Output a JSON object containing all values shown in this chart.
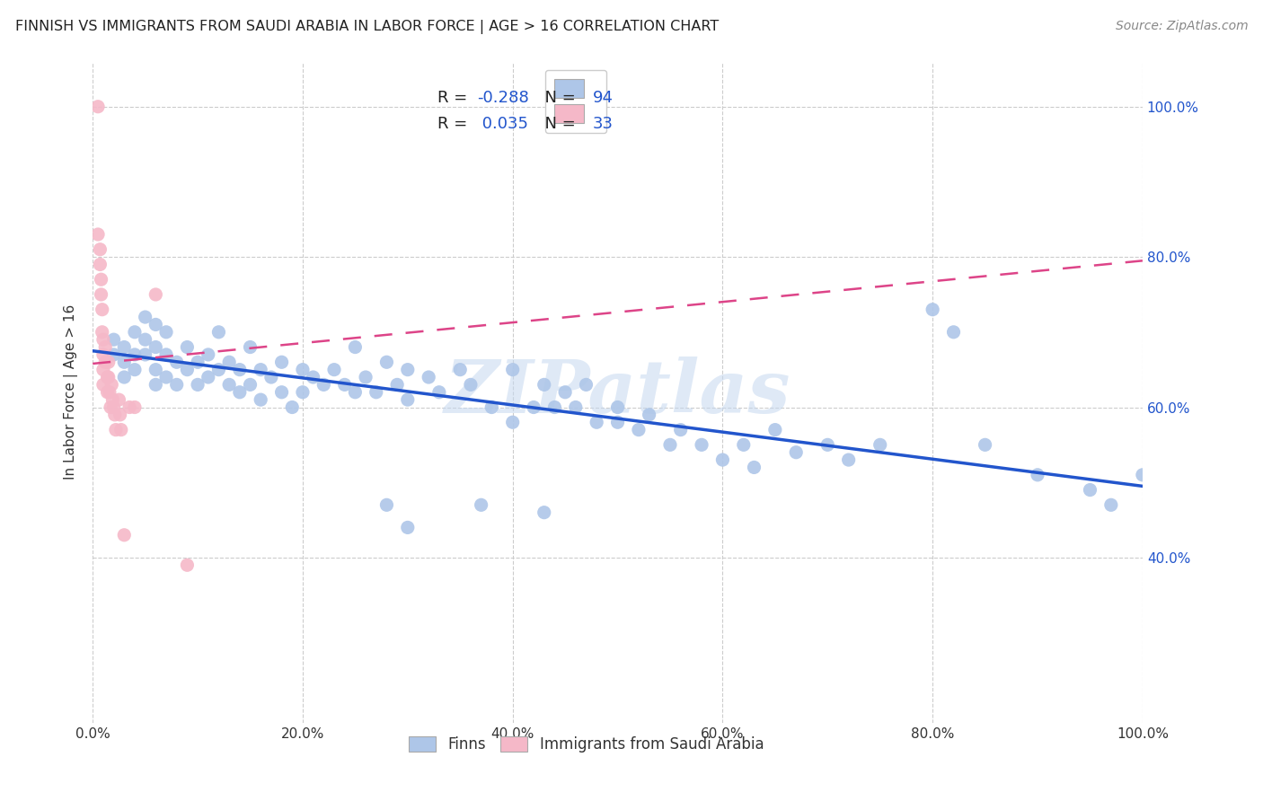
{
  "title": "FINNISH VS IMMIGRANTS FROM SAUDI ARABIA IN LABOR FORCE | AGE > 16 CORRELATION CHART",
  "source": "Source: ZipAtlas.com",
  "ylabel": "In Labor Force | Age > 16",
  "xlim": [
    0.0,
    1.0
  ],
  "ylim": [
    0.18,
    1.06
  ],
  "xticks": [
    0.0,
    0.2,
    0.4,
    0.6,
    0.8,
    1.0
  ],
  "xticklabels": [
    "0.0%",
    "20.0%",
    "40.0%",
    "60.0%",
    "80.0%",
    "100.0%"
  ],
  "yticks": [
    0.4,
    0.6,
    0.8,
    1.0
  ],
  "yticklabels": [
    "40.0%",
    "60.0%",
    "80.0%",
    "100.0%"
  ],
  "legend_r_blue": "-0.288",
  "legend_n_blue": "94",
  "legend_r_pink": "0.035",
  "legend_n_pink": "33",
  "legend_label_blue": "Finns",
  "legend_label_pink": "Immigrants from Saudi Arabia",
  "blue_color": "#aec6e8",
  "blue_line_color": "#2255cc",
  "pink_color": "#f5b8c8",
  "pink_line_color": "#dd4488",
  "tick_color": "#2255cc",
  "watermark": "ZIPatlas",
  "watermark_color": "#c5d8f0",
  "background_color": "#ffffff",
  "grid_color": "#cccccc",
  "grid_style": "--",
  "blue_scatter_x": [
    0.02,
    0.02,
    0.03,
    0.03,
    0.03,
    0.04,
    0.04,
    0.04,
    0.05,
    0.05,
    0.05,
    0.06,
    0.06,
    0.06,
    0.06,
    0.07,
    0.07,
    0.07,
    0.08,
    0.08,
    0.09,
    0.09,
    0.1,
    0.1,
    0.11,
    0.11,
    0.12,
    0.12,
    0.13,
    0.13,
    0.14,
    0.14,
    0.15,
    0.15,
    0.16,
    0.16,
    0.17,
    0.18,
    0.18,
    0.19,
    0.2,
    0.2,
    0.21,
    0.22,
    0.23,
    0.24,
    0.25,
    0.25,
    0.26,
    0.27,
    0.28,
    0.29,
    0.3,
    0.3,
    0.32,
    0.33,
    0.35,
    0.36,
    0.38,
    0.4,
    0.4,
    0.42,
    0.43,
    0.44,
    0.45,
    0.46,
    0.47,
    0.48,
    0.5,
    0.5,
    0.52,
    0.53,
    0.55,
    0.56,
    0.58,
    0.6,
    0.62,
    0.63,
    0.65,
    0.67,
    0.7,
    0.72,
    0.75,
    0.8,
    0.82,
    0.85,
    0.9,
    0.95,
    0.97,
    0.37,
    0.43,
    0.28,
    0.3,
    1.0
  ],
  "blue_scatter_y": [
    0.69,
    0.67,
    0.68,
    0.66,
    0.64,
    0.7,
    0.67,
    0.65,
    0.72,
    0.69,
    0.67,
    0.71,
    0.68,
    0.65,
    0.63,
    0.7,
    0.67,
    0.64,
    0.66,
    0.63,
    0.68,
    0.65,
    0.66,
    0.63,
    0.67,
    0.64,
    0.7,
    0.65,
    0.66,
    0.63,
    0.65,
    0.62,
    0.68,
    0.63,
    0.65,
    0.61,
    0.64,
    0.66,
    0.62,
    0.6,
    0.65,
    0.62,
    0.64,
    0.63,
    0.65,
    0.63,
    0.62,
    0.68,
    0.64,
    0.62,
    0.66,
    0.63,
    0.65,
    0.61,
    0.64,
    0.62,
    0.65,
    0.63,
    0.6,
    0.65,
    0.58,
    0.6,
    0.63,
    0.6,
    0.62,
    0.6,
    0.63,
    0.58,
    0.6,
    0.58,
    0.57,
    0.59,
    0.55,
    0.57,
    0.55,
    0.53,
    0.55,
    0.52,
    0.57,
    0.54,
    0.55,
    0.53,
    0.55,
    0.73,
    0.7,
    0.55,
    0.51,
    0.49,
    0.47,
    0.47,
    0.46,
    0.47,
    0.44,
    0.51
  ],
  "pink_scatter_x": [
    0.005,
    0.005,
    0.007,
    0.007,
    0.008,
    0.008,
    0.009,
    0.009,
    0.01,
    0.01,
    0.01,
    0.01,
    0.012,
    0.012,
    0.014,
    0.014,
    0.015,
    0.015,
    0.016,
    0.017,
    0.018,
    0.019,
    0.02,
    0.021,
    0.022,
    0.025,
    0.026,
    0.027,
    0.03,
    0.035,
    0.04,
    0.06,
    0.09
  ],
  "pink_scatter_y": [
    1.0,
    0.83,
    0.81,
    0.79,
    0.77,
    0.75,
    0.73,
    0.7,
    0.69,
    0.67,
    0.65,
    0.63,
    0.68,
    0.66,
    0.64,
    0.62,
    0.66,
    0.64,
    0.62,
    0.6,
    0.63,
    0.61,
    0.6,
    0.59,
    0.57,
    0.61,
    0.59,
    0.57,
    0.43,
    0.6,
    0.6,
    0.75,
    0.39
  ]
}
